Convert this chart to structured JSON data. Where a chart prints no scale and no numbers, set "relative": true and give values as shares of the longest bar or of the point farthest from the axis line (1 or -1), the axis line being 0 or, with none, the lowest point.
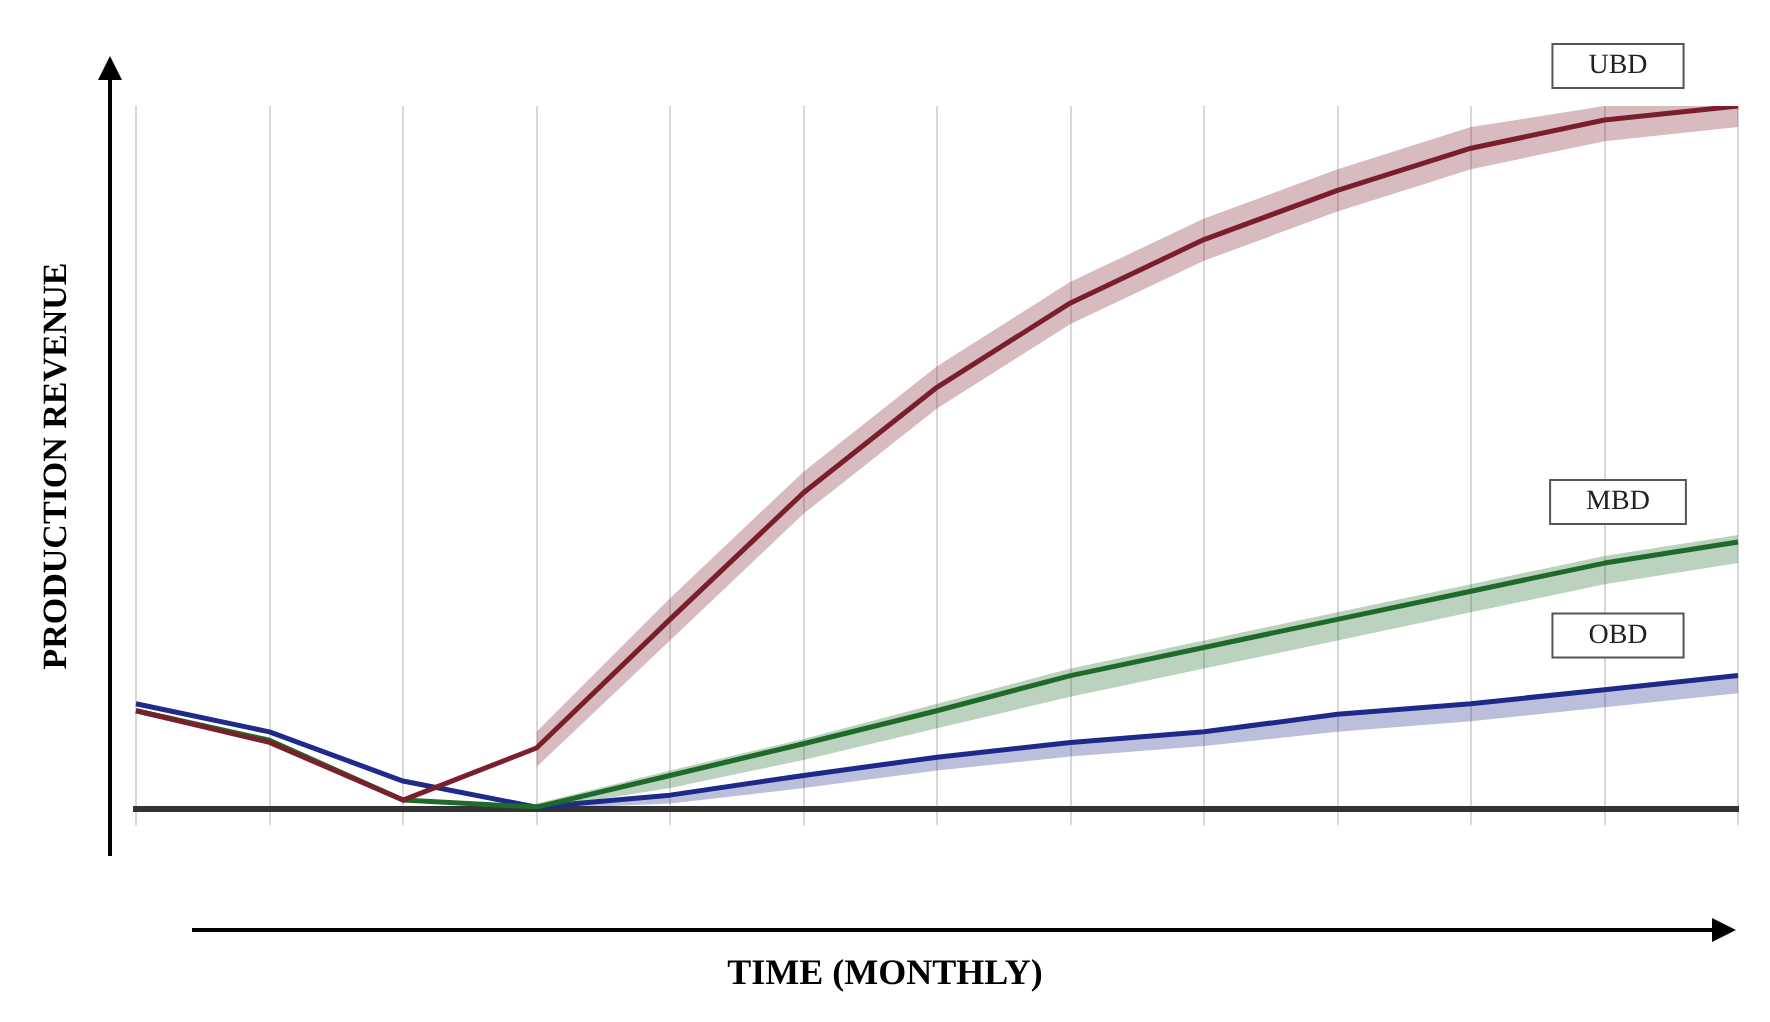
{
  "chart_data": {
    "type": "line",
    "xlabel": "TIME (MONTHLY)",
    "ylabel": "PRODUCTION REVENUE",
    "relative": true,
    "grid": "x",
    "legend": false,
    "marker": "none",
    "line_style": "solid",
    "categories": [
      null,
      null,
      null,
      null,
      null,
      null,
      null,
      null,
      null,
      null,
      null,
      null,
      null
    ],
    "series": [
      {
        "name": "UBD",
        "color": "#7a1f2b",
        "values": [
          0.14,
          0.095,
          0.013,
          0.087,
          0.27,
          0.45,
          0.6,
          0.72,
          0.81,
          0.88,
          0.94,
          0.98,
          1.0
        ],
        "lower": [
          null,
          null,
          null,
          0.06,
          0.24,
          0.42,
          0.57,
          0.69,
          0.78,
          0.85,
          0.91,
          0.95,
          0.97
        ],
        "upper": [
          null,
          null,
          null,
          0.11,
          0.3,
          0.48,
          0.63,
          0.75,
          0.84,
          0.91,
          0.97,
          1.0,
          1.0
        ]
      },
      {
        "name": "MBD",
        "color": "#1e6b2a",
        "values": [
          0.14,
          0.098,
          0.013,
          0.003,
          0.048,
          0.093,
          0.14,
          0.19,
          0.23,
          0.27,
          0.31,
          0.35,
          0.38
        ],
        "lower": [
          null,
          null,
          null,
          0.0,
          0.03,
          0.07,
          0.115,
          0.16,
          0.2,
          0.24,
          0.28,
          0.32,
          0.35
        ],
        "upper": [
          null,
          null,
          null,
          0.008,
          0.055,
          0.1,
          0.15,
          0.2,
          0.24,
          0.28,
          0.32,
          0.36,
          0.39
        ]
      },
      {
        "name": "OBD",
        "color": "#1f2a8a",
        "values": [
          0.15,
          0.11,
          0.04,
          0.003,
          0.02,
          0.048,
          0.074,
          0.095,
          0.11,
          0.135,
          0.15,
          0.17,
          0.19
        ],
        "lower": [
          null,
          null,
          null,
          0.0,
          0.008,
          0.03,
          0.055,
          0.075,
          0.09,
          0.11,
          0.125,
          0.145,
          0.165
        ],
        "upper": [
          null,
          null,
          null,
          0.006,
          0.022,
          0.05,
          0.076,
          0.097,
          0.112,
          0.137,
          0.152,
          0.172,
          0.192
        ]
      }
    ]
  }
}
